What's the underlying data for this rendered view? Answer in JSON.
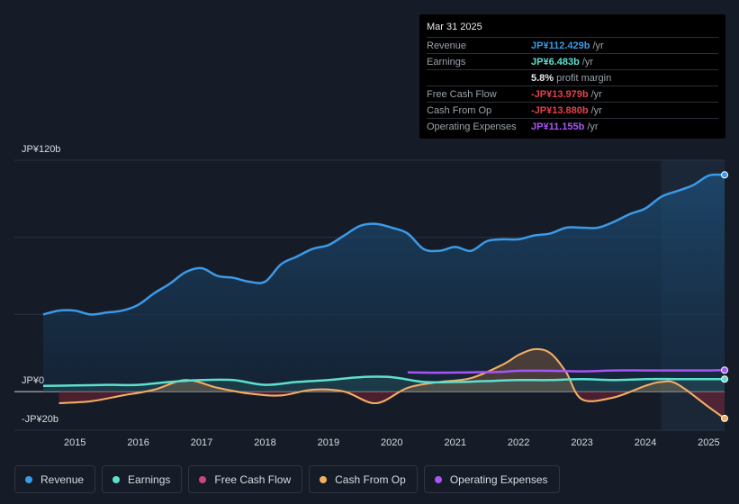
{
  "tooltip": {
    "date": "Mar 31 2025",
    "rows": [
      {
        "label": "Revenue",
        "value": "JP¥112.429b",
        "unit": "/yr",
        "color": "#3b9ae8"
      },
      {
        "label": "Earnings",
        "value": "JP¥6.483b",
        "unit": "/yr",
        "color": "#5de0cf"
      },
      {
        "label": "",
        "value": "5.8%",
        "unit": "profit margin",
        "color": "#e6e8ec"
      },
      {
        "label": "Free Cash Flow",
        "value": "-JP¥13.979b",
        "unit": "/yr",
        "color": "#e5414c"
      },
      {
        "label": "Cash From Op",
        "value": "-JP¥13.880b",
        "unit": "/yr",
        "color": "#e5414c"
      },
      {
        "label": "Operating Expenses",
        "value": "JP¥11.155b",
        "unit": "/yr",
        "color": "#a855f7"
      }
    ]
  },
  "legend": [
    {
      "label": "Revenue",
      "color": "#3b9ae8"
    },
    {
      "label": "Earnings",
      "color": "#5de0cf"
    },
    {
      "label": "Free Cash Flow",
      "color": "#c8467a"
    },
    {
      "label": "Cash From Op",
      "color": "#f0b060"
    },
    {
      "label": "Operating Expenses",
      "color": "#a855f7"
    }
  ],
  "chart_data": {
    "type": "line",
    "title": "",
    "xlabel": "",
    "ylabel": "",
    "y_tick_labels": [
      "JP¥120b",
      "JP¥0",
      "-JP¥20b"
    ],
    "ylim": [
      -20,
      120
    ],
    "xlim": [
      2014.5,
      2025.25
    ],
    "x_tick_labels": [
      "2015",
      "2016",
      "2017",
      "2018",
      "2019",
      "2020",
      "2021",
      "2022",
      "2023",
      "2024",
      "2025"
    ],
    "x_ticks": [
      2015,
      2016,
      2017,
      2018,
      2019,
      2020,
      2021,
      2022,
      2023,
      2024,
      2025
    ],
    "highlight_start": 2024.25,
    "series": [
      {
        "name": "Revenue",
        "color": "#3b9ae8",
        "x": [
          2014.5,
          2014.75,
          2015.0,
          2015.25,
          2015.5,
          2015.75,
          2016.0,
          2016.25,
          2016.5,
          2016.75,
          2017.0,
          2017.25,
          2017.5,
          2017.75,
          2018.0,
          2018.25,
          2018.5,
          2018.75,
          2019.0,
          2019.25,
          2019.5,
          2019.75,
          2020.0,
          2020.25,
          2020.5,
          2020.75,
          2021.0,
          2021.25,
          2021.5,
          2021.75,
          2022.0,
          2022.25,
          2022.5,
          2022.75,
          2023.0,
          2023.25,
          2023.5,
          2023.75,
          2024.0,
          2024.25,
          2024.5,
          2024.75,
          2025.0,
          2025.25
        ],
        "values": [
          40,
          42,
          42,
          40,
          41,
          42,
          45,
          51,
          56,
          62,
          64,
          60,
          59,
          57,
          57,
          66,
          70,
          74,
          76,
          81,
          86,
          87,
          85,
          82,
          74,
          73,
          75,
          73,
          78,
          79,
          79,
          81,
          82,
          85,
          85,
          85,
          88,
          92,
          95,
          101,
          104,
          107,
          112,
          112.4
        ]
      },
      {
        "name": "Earnings",
        "color": "#5de0cf",
        "x": [
          2014.5,
          2015.0,
          2015.5,
          2016.0,
          2016.5,
          2017.0,
          2017.5,
          2018.0,
          2018.5,
          2019.0,
          2019.5,
          2020.0,
          2020.5,
          2021.0,
          2021.5,
          2022.0,
          2022.5,
          2023.0,
          2023.5,
          2024.0,
          2024.5,
          2025.0,
          2025.25
        ],
        "values": [
          3,
          3.2,
          3.5,
          3.5,
          5,
          6,
          6,
          3.5,
          5,
          6,
          7.5,
          7.5,
          5,
          5,
          5.5,
          6,
          6,
          6.5,
          6,
          6.5,
          6.5,
          6.5,
          6.48
        ]
      },
      {
        "name": "Free Cash Flow",
        "color": "#c8467a",
        "x": [
          2014.75,
          2015.25,
          2015.75,
          2016.25,
          2016.75,
          2017.25,
          2017.75,
          2018.25,
          2018.75,
          2019.25,
          2019.75,
          2020.25,
          2020.75,
          2021.25,
          2021.75,
          2022.0,
          2022.25,
          2022.5,
          2022.75,
          2023.0,
          2023.5,
          2024.0,
          2024.25,
          2024.5,
          2025.0,
          2025.25
        ],
        "values": [
          -6,
          -5,
          -2,
          1,
          6,
          2,
          -1,
          -2,
          1,
          0,
          -6,
          2,
          5,
          7,
          14,
          19,
          22,
          20,
          10,
          -4,
          -3,
          3,
          5,
          4,
          -8,
          -14
        ]
      },
      {
        "name": "Cash From Op",
        "color": "#f0b060",
        "x": [
          2014.75,
          2015.25,
          2015.75,
          2016.25,
          2016.75,
          2017.25,
          2017.75,
          2018.25,
          2018.75,
          2019.25,
          2019.75,
          2020.25,
          2020.75,
          2021.25,
          2021.75,
          2022.0,
          2022.25,
          2022.5,
          2022.75,
          2023.0,
          2023.5,
          2024.0,
          2024.25,
          2024.5,
          2025.0,
          2025.25
        ],
        "values": [
          -6,
          -5,
          -2,
          1,
          6,
          2,
          -1,
          -2,
          1,
          0,
          -6,
          2,
          5,
          7,
          14,
          19,
          22,
          20,
          10,
          -4,
          -3,
          3,
          5,
          4,
          -8,
          -13.9
        ]
      },
      {
        "name": "Operating Expenses",
        "color": "#a855f7",
        "x": [
          2020.25,
          2020.75,
          2021.25,
          2021.75,
          2022.0,
          2022.5,
          2023.0,
          2023.5,
          2024.0,
          2024.5,
          2025.0,
          2025.25
        ],
        "values": [
          10,
          9.8,
          10,
          10.3,
          10.8,
          10.8,
          10.5,
          11,
          11,
          11,
          11,
          11.15
        ]
      }
    ]
  }
}
